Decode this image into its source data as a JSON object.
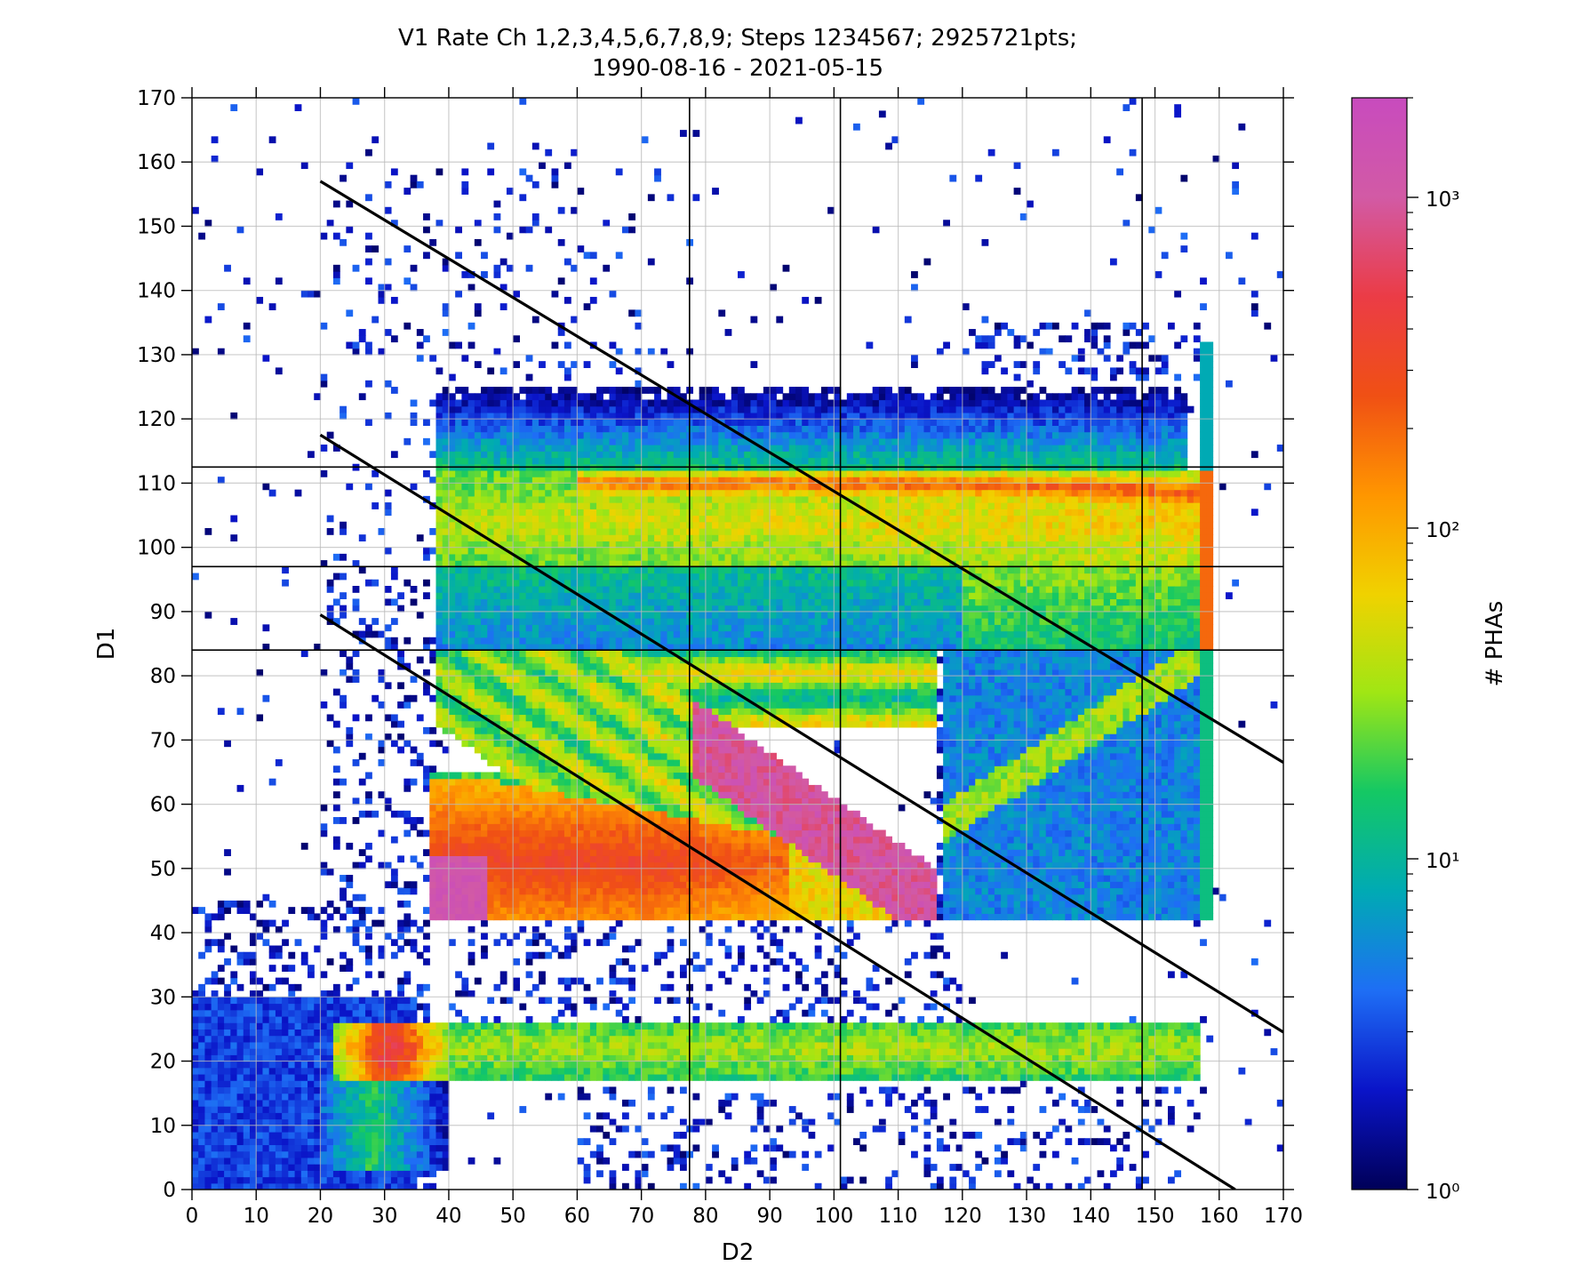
{
  "chart_data": {
    "type": "heatmap",
    "title_line1": "V1 Rate Ch 1,2,3,4,5,6,7,8,9; Steps 1234567; 2925721pts;",
    "title_line2": "1990-08-16 - 2021-05-15",
    "xlabel": "D2",
    "ylabel": "D1",
    "xlim": [
      0,
      170
    ],
    "ylim": [
      0,
      170
    ],
    "xticks": [
      0,
      10,
      20,
      30,
      40,
      50,
      60,
      70,
      80,
      90,
      100,
      110,
      120,
      130,
      140,
      150,
      160,
      170
    ],
    "yticks": [
      0,
      10,
      20,
      30,
      40,
      50,
      60,
      70,
      80,
      90,
      100,
      110,
      120,
      130,
      140,
      150,
      160,
      170
    ],
    "grid": true,
    "colorbar": {
      "label": "# PHAs",
      "scale": "log",
      "range": [
        1,
        2000
      ],
      "ticks": [
        {
          "value": 1,
          "label": "10⁰"
        },
        {
          "value": 10,
          "label": "10¹"
        },
        {
          "value": 100,
          "label": "10²"
        },
        {
          "value": 1000,
          "label": "10³"
        }
      ],
      "colors": [
        "#000058",
        "#0a14c8",
        "#1e6ef5",
        "#00aab4",
        "#14c864",
        "#a0e614",
        "#f0d200",
        "#ff9600",
        "#f05014",
        "#eb3c46",
        "#d25aa5",
        "#c84bbe"
      ]
    },
    "vertical_lines": [
      77.5,
      101.0,
      148.0
    ],
    "horizontal_lines": [
      84.0,
      97.0,
      112.5
    ],
    "diagonal_lines": [
      {
        "x": [
          20,
          170
        ],
        "y": [
          157.0,
          66.5
        ]
      },
      {
        "x": [
          20,
          170
        ],
        "y": [
          117.5,
          24.5
        ]
      },
      {
        "x": [
          20,
          162.5
        ],
        "y": [
          89.5,
          0
        ]
      }
    ]
  }
}
